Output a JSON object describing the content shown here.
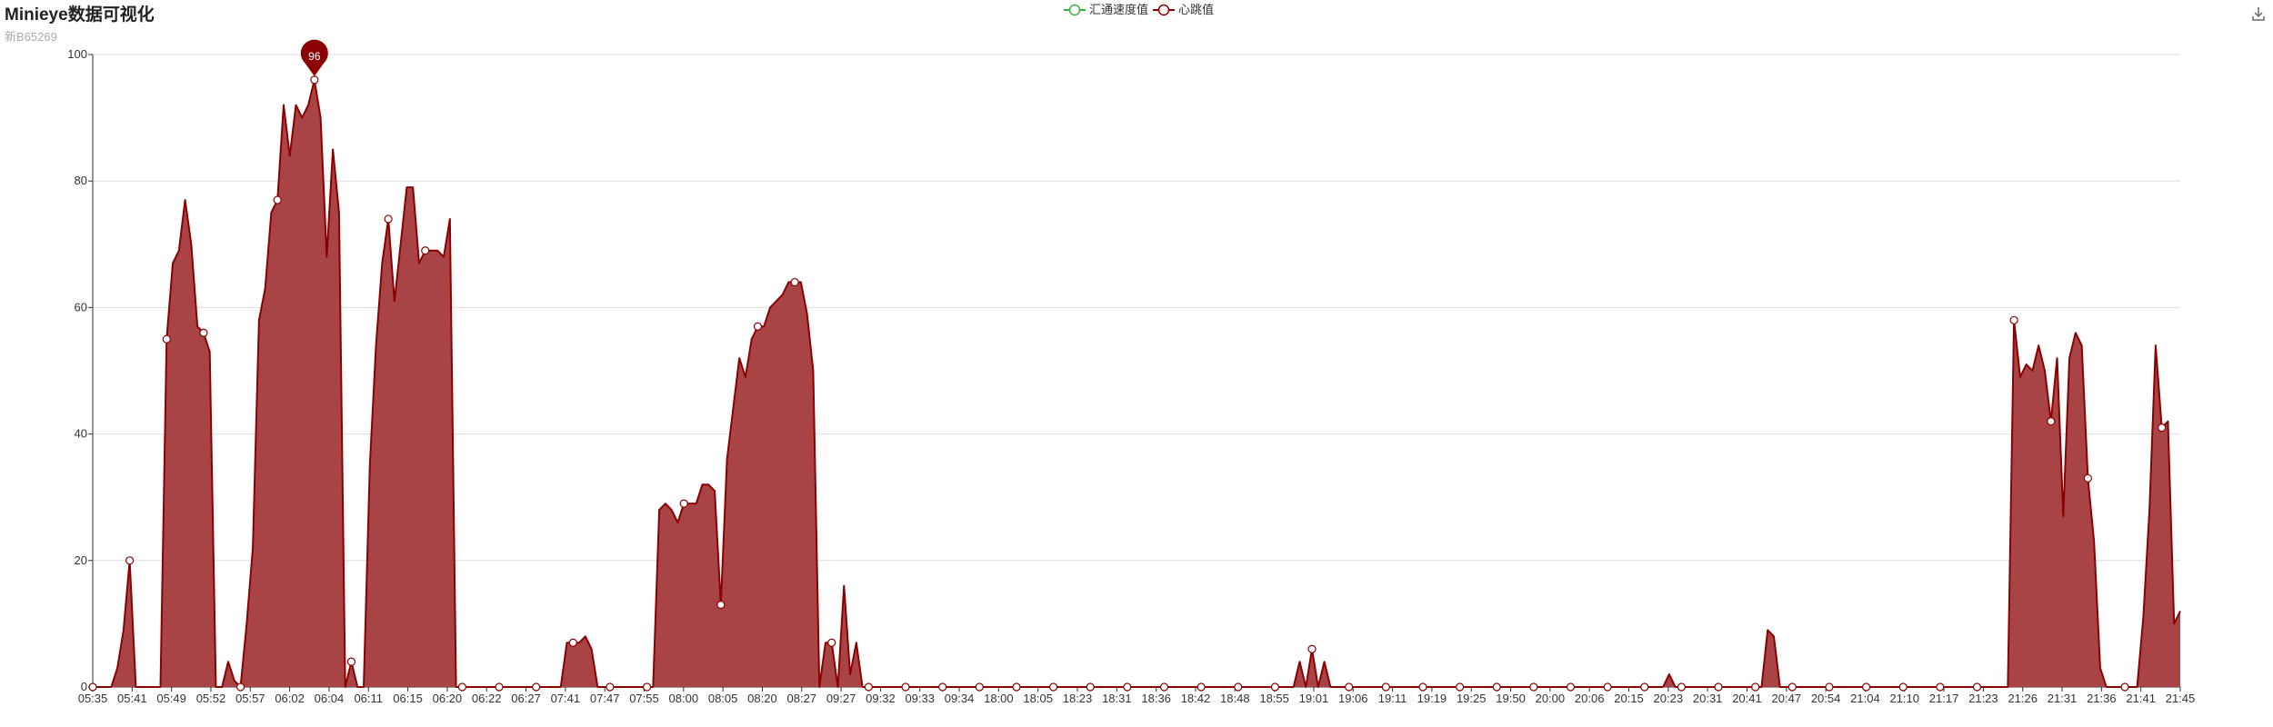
{
  "title": "Minieye数据可视化",
  "subtitle": "新B65269",
  "colors": {
    "series1": "#3fae3f",
    "series2": "#8b0000",
    "area": "#a94446",
    "grid": "#dddddd",
    "axis": "#333333"
  },
  "toolbox": {
    "icon": "download-icon"
  },
  "chart_data": {
    "type": "area",
    "title": "Minieye数据可视化",
    "subtitle": "新B65269",
    "legend": [
      "汇通速度值",
      "心跳值"
    ],
    "legend_position": "top-center",
    "ylim": [
      0,
      100
    ],
    "yticks": [
      0,
      20,
      40,
      60,
      80,
      100
    ],
    "grid": true,
    "x_labels": [
      "05:35",
      "05:41",
      "05:49",
      "05:52",
      "05:57",
      "06:02",
      "06:04",
      "06:11",
      "06:15",
      "06:20",
      "06:22",
      "06:27",
      "07:41",
      "07:47",
      "07:55",
      "08:00",
      "08:05",
      "08:20",
      "08:27",
      "09:27",
      "09:32",
      "09:33",
      "09:34",
      "18:00",
      "18:05",
      "18:23",
      "18:31",
      "18:36",
      "18:42",
      "18:48",
      "18:55",
      "19:01",
      "19:06",
      "19:11",
      "19:19",
      "19:25",
      "19:50",
      "20:00",
      "20:06",
      "20:15",
      "20:23",
      "20:31",
      "20:41",
      "20:47",
      "20:54",
      "21:04",
      "21:10",
      "21:17",
      "21:23",
      "21:26",
      "21:31",
      "21:36",
      "21:41",
      "21:45"
    ],
    "max_marker": {
      "value": 96,
      "label": "96"
    },
    "series": [
      {
        "name": "汇通速度值",
        "values": []
      },
      {
        "name": "心跳值",
        "values": [
          0,
          0,
          0,
          0,
          3,
          9,
          20,
          0,
          0,
          0,
          0,
          0,
          55,
          67,
          69,
          77,
          70,
          57,
          56,
          53,
          0,
          0,
          4,
          1,
          0,
          10,
          22,
          58,
          63,
          75,
          77,
          92,
          84,
          92,
          90,
          92,
          96,
          90,
          68,
          85,
          75,
          0,
          4,
          0,
          0,
          35,
          54,
          67,
          74,
          61,
          70,
          79,
          79,
          67,
          69,
          69,
          69,
          68,
          74,
          0,
          0,
          0,
          0,
          0,
          0,
          0,
          0,
          0,
          0,
          0,
          0,
          0,
          0,
          0,
          0,
          0,
          0,
          7,
          7,
          7,
          8,
          6,
          0,
          0,
          0,
          0,
          0,
          0,
          0,
          0,
          0,
          0,
          28,
          29,
          28,
          26,
          29,
          29,
          29,
          32,
          32,
          31,
          13,
          36,
          44,
          52,
          49,
          55,
          57,
          57,
          60,
          61,
          62,
          64,
          64,
          64,
          59,
          50,
          0,
          7,
          7,
          0,
          16,
          2,
          7,
          0,
          0,
          0,
          0,
          0,
          0,
          0,
          0,
          0,
          0,
          0,
          0,
          0,
          0,
          0,
          0,
          0,
          0,
          0,
          0,
          0,
          0,
          0,
          0,
          0,
          0,
          0,
          0,
          0,
          0,
          0,
          0,
          0,
          0,
          0,
          0,
          0,
          0,
          0,
          0,
          0,
          0,
          0,
          0,
          0,
          0,
          0,
          0,
          0,
          0,
          0,
          0,
          0,
          0,
          0,
          0,
          0,
          0,
          0,
          0,
          0,
          0,
          0,
          0,
          0,
          0,
          0,
          0,
          0,
          0,
          0,
          4,
          0,
          6,
          0,
          4,
          0,
          0,
          0,
          0,
          0,
          0,
          0,
          0,
          0,
          0,
          0,
          0,
          0,
          0,
          0,
          0,
          0,
          0,
          0,
          0,
          0,
          0,
          0,
          0,
          0,
          0,
          0,
          0,
          0,
          0,
          0,
          0,
          0,
          0,
          0,
          0,
          0,
          0,
          0,
          0,
          0,
          0,
          0,
          0,
          0,
          0,
          0,
          0,
          0,
          0,
          0,
          0,
          0,
          0,
          0,
          2,
          0,
          0,
          0,
          0,
          0,
          0,
          0,
          0,
          0,
          0,
          0,
          0,
          0,
          0,
          0,
          9,
          8,
          0,
          0,
          0,
          0,
          0,
          0,
          0,
          0,
          0,
          0,
          0,
          0,
          0,
          0,
          0,
          0,
          0,
          0,
          0,
          0,
          0,
          0,
          0,
          0,
          0,
          0,
          0,
          0,
          0,
          0,
          0,
          0,
          0,
          0,
          0,
          0,
          0,
          0,
          58,
          49,
          51,
          50,
          54,
          50,
          42,
          52,
          27,
          52,
          56,
          54,
          33,
          23,
          3,
          0,
          0,
          0,
          0,
          0,
          0,
          11,
          28,
          54,
          41,
          42,
          10,
          12
        ]
      }
    ]
  }
}
